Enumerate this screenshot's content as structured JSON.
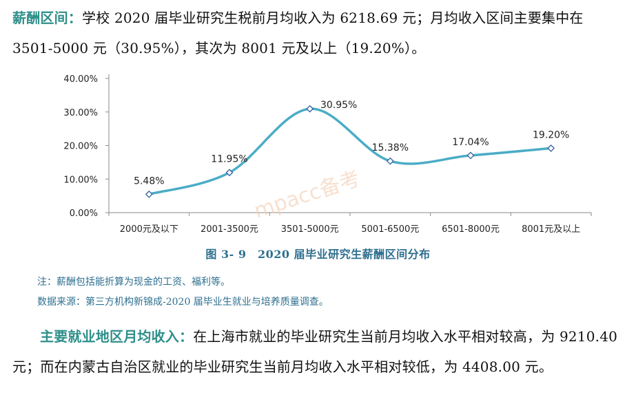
{
  "intro": {
    "keyword": "薪酬区间：",
    "text": "学校 2020 届毕业研究生税前月均收入为 6218.69 元；月均收入区间主要集中在 3501-5000 元（30.95%），其次为 8001 元及以上（19.20%）。"
  },
  "chart_data": {
    "type": "line",
    "categories": [
      "2000元及以下",
      "2001-3500元",
      "3501-5000元",
      "5001-6500元",
      "6501-8000元",
      "8001元及以上"
    ],
    "values": [
      5.48,
      11.95,
      30.95,
      15.38,
      17.04,
      19.2
    ],
    "value_labels": [
      "5.48%",
      "11.95%",
      "30.95%",
      "15.38%",
      "17.04%",
      "19.20%"
    ],
    "ylim": [
      0,
      40
    ],
    "yticks": [
      "0.00%",
      "10.00%",
      "20.00%",
      "30.00%",
      "40.00%"
    ],
    "grid": false,
    "line_color": "#4bacc6",
    "smooth": true
  },
  "caption": "图 3- 9　2020 届毕业研究生薪酬区间分布",
  "notes": {
    "note1": "注：薪酬包括能折算为现金的工资、福利等。",
    "note2": "数据来源：第三方机构新锦成-2020 届毕业生就业与培养质量调查。"
  },
  "watermark": "mpacc备考",
  "region": {
    "keyword": "主要就业地区月均收入：",
    "text": "在上海市就业的毕业研究生当前月均收入水平相对较高，为 9210.40 元；而在内蒙古自治区就业的毕业研究生当前月均收入水平相对较低，为 4408.00 元。"
  }
}
